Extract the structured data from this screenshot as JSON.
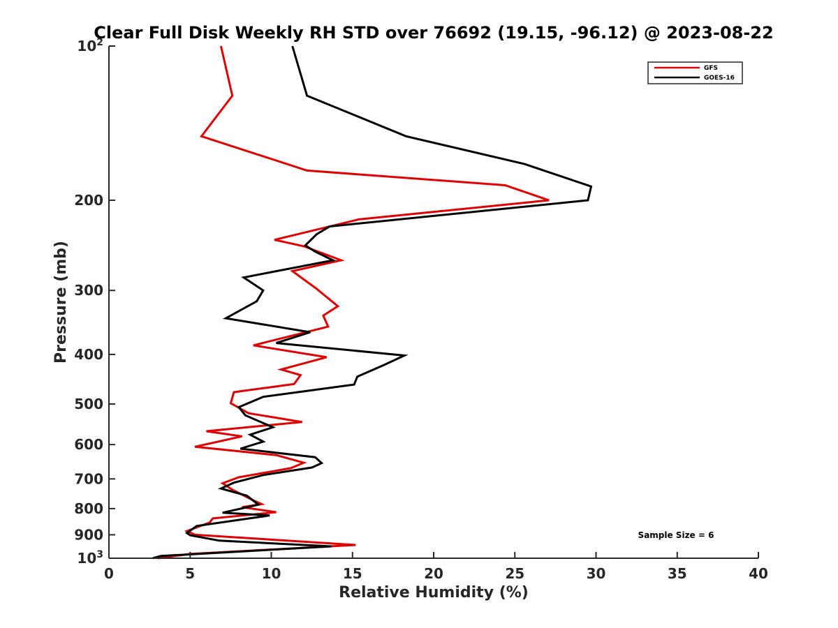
{
  "chart_data": {
    "type": "line",
    "title": "Clear Full Disk Weekly RH STD over 76692 (19.15, -96.12) @ 2023-08-22",
    "xlabel": "Relative Humidity (%)",
    "ylabel": "Pressure (mb)",
    "xlim": [
      0,
      40
    ],
    "ylim": [
      100,
      1000
    ],
    "yscale": "log",
    "y_reversed": true,
    "grid": false,
    "xticks": [
      0,
      5,
      10,
      15,
      20,
      25,
      30,
      35,
      40
    ],
    "xtick_labels": [
      "0",
      "5",
      "10",
      "15",
      "20",
      "25",
      "30",
      "35",
      "40"
    ],
    "yticks": [
      100,
      200,
      300,
      400,
      500,
      600,
      700,
      800,
      900,
      1000
    ],
    "ytick_labels": [
      "",
      "200",
      "300",
      "400",
      "500",
      "600",
      "700",
      "800",
      "900",
      ""
    ],
    "ytick_power_labels": [
      {
        "value": 100,
        "base": "10",
        "exp": "2"
      },
      {
        "value": 1000,
        "base": "10",
        "exp": "3"
      }
    ],
    "legend_position": "top-right",
    "annotation": "Sample Size = 6",
    "series": [
      {
        "name": "GFS",
        "color": "#e00000",
        "points": [
          [
            6.9,
            100
          ],
          [
            7.6,
            125
          ],
          [
            5.7,
            150
          ],
          [
            12.2,
            175
          ],
          [
            24.4,
            187
          ],
          [
            27.1,
            200
          ],
          [
            15.4,
            218
          ],
          [
            10.2,
            239
          ],
          [
            12.0,
            246
          ],
          [
            14.3,
            262
          ],
          [
            11.3,
            275
          ],
          [
            12.8,
            298
          ],
          [
            14.1,
            322
          ],
          [
            13.2,
            336
          ],
          [
            13.5,
            353
          ],
          [
            8.9,
            384
          ],
          [
            13.4,
            405
          ],
          [
            10.6,
            428
          ],
          [
            11.8,
            439
          ],
          [
            11.4,
            457
          ],
          [
            7.7,
            474
          ],
          [
            7.5,
            498
          ],
          [
            8.6,
            521
          ],
          [
            11.9,
            542
          ],
          [
            6.0,
            565
          ],
          [
            8.2,
            578
          ],
          [
            5.3,
            606
          ],
          [
            10.3,
            629
          ],
          [
            12.0,
            651
          ],
          [
            11.2,
            667
          ],
          [
            8.0,
            695
          ],
          [
            7.0,
            714
          ],
          [
            7.6,
            735
          ],
          [
            8.9,
            771
          ],
          [
            9.4,
            784
          ],
          [
            8.2,
            795
          ],
          [
            10.3,
            813
          ],
          [
            6.4,
            836
          ],
          [
            6.2,
            852
          ],
          [
            4.8,
            885
          ],
          [
            5.3,
            900
          ],
          [
            15.2,
            942
          ],
          [
            5.0,
            981
          ],
          [
            3.0,
            1000
          ]
        ]
      },
      {
        "name": "GOES-16",
        "color": "#000000",
        "points": [
          [
            11.3,
            100
          ],
          [
            12.2,
            125
          ],
          [
            18.3,
            150
          ],
          [
            25.6,
            170
          ],
          [
            29.7,
            188
          ],
          [
            29.5,
            200
          ],
          [
            13.6,
            225
          ],
          [
            12.8,
            233
          ],
          [
            12.1,
            245
          ],
          [
            12.7,
            252
          ],
          [
            13.8,
            262
          ],
          [
            8.3,
            283
          ],
          [
            9.5,
            300
          ],
          [
            9.1,
            315
          ],
          [
            7.2,
            340
          ],
          [
            12.4,
            362
          ],
          [
            10.3,
            380
          ],
          [
            18.2,
            402
          ],
          [
            16.9,
            420
          ],
          [
            15.3,
            442
          ],
          [
            15.1,
            458
          ],
          [
            9.5,
            484
          ],
          [
            8.0,
            507
          ],
          [
            8.4,
            526
          ],
          [
            10.1,
            555
          ],
          [
            8.7,
            574
          ],
          [
            9.5,
            592
          ],
          [
            8.1,
            611
          ],
          [
            12.7,
            635
          ],
          [
            13.1,
            652
          ],
          [
            12.5,
            665
          ],
          [
            9.5,
            688
          ],
          [
            7.7,
            712
          ],
          [
            6.9,
            731
          ],
          [
            8.5,
            755
          ],
          [
            9.2,
            786
          ],
          [
            7.0,
            815
          ],
          [
            9.9,
            825
          ],
          [
            5.4,
            865
          ],
          [
            4.8,
            893
          ],
          [
            5.0,
            902
          ],
          [
            6.8,
            924
          ],
          [
            13.7,
            948
          ],
          [
            3.2,
            990
          ],
          [
            2.7,
            1000
          ]
        ]
      }
    ]
  }
}
